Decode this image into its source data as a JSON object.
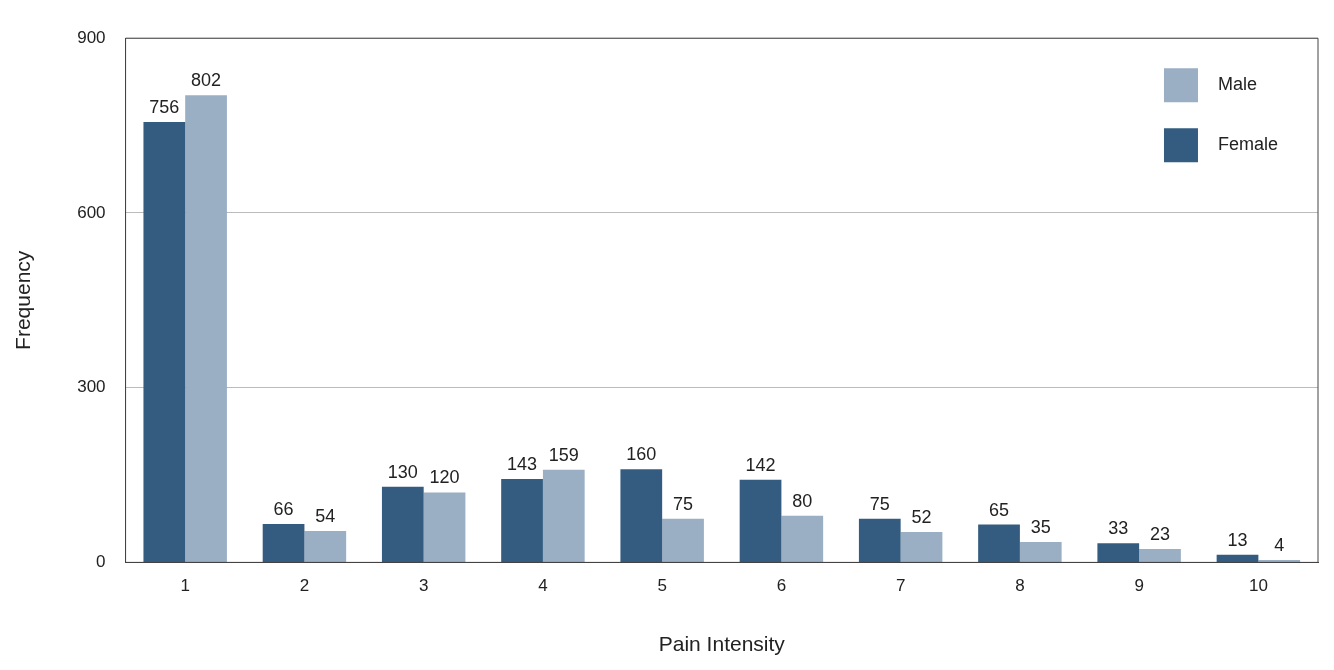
{
  "chart_data": {
    "type": "bar",
    "xlabel": "Pain Intensity",
    "ylabel": "Frequency",
    "categories": [
      "1",
      "2",
      "3",
      "4",
      "5",
      "6",
      "7",
      "8",
      "9",
      "10"
    ],
    "series": [
      {
        "name": "Female",
        "color": "#335c80",
        "values": [
          756,
          66,
          130,
          143,
          160,
          142,
          75,
          65,
          33,
          13
        ]
      },
      {
        "name": "Male",
        "color": "#9aafc4",
        "values": [
          802,
          54,
          120,
          159,
          75,
          80,
          52,
          35,
          23,
          4
        ]
      }
    ],
    "ylim": [
      0,
      900
    ],
    "yticks": [
      0,
      300,
      600,
      900
    ],
    "grid": "y",
    "legend": "top right",
    "data_labels": true
  }
}
